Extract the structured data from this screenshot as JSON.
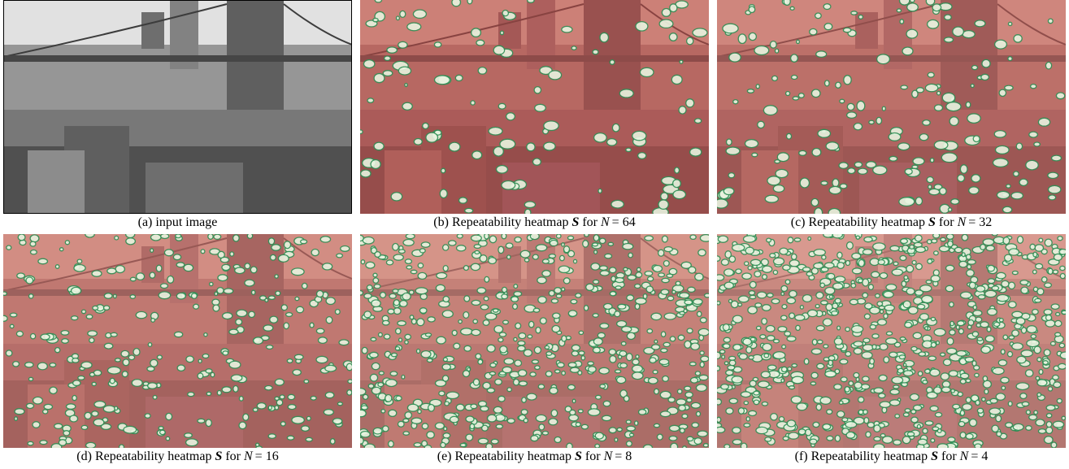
{
  "panels": [
    {
      "caption": {
        "text": "(a) input image"
      }
    },
    {
      "caption": {
        "text": "(b) Repeatability heatmap",
        "symbol": "S",
        "connector": "for",
        "variable": "N",
        "equation": "= 64"
      }
    },
    {
      "caption": {
        "text": "(c) Repeatability heatmap",
        "symbol": "S",
        "connector": "for",
        "variable": "N",
        "equation": "= 32"
      }
    },
    {
      "caption": {
        "text": "(d) Repeatability heatmap",
        "symbol": "S",
        "connector": "for",
        "variable": "N",
        "equation": "= 16"
      }
    },
    {
      "caption": {
        "text": "(e) Repeatability heatmap",
        "symbol": "S",
        "connector": "for",
        "variable": "N",
        "equation": "= 8"
      }
    },
    {
      "caption": {
        "text": "(f) Repeatability heatmap",
        "symbol": "S",
        "connector": "for",
        "variable": "N",
        "equation": "= 4"
      }
    }
  ]
}
